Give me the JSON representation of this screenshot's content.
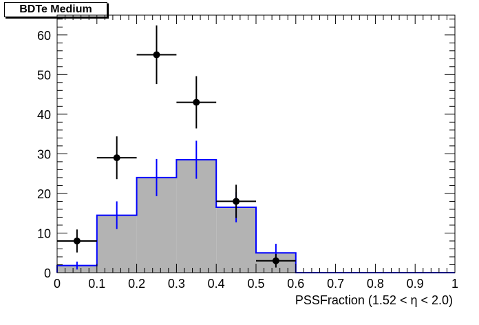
{
  "chart_data": {
    "type": "bar",
    "title": "BDTe Medium",
    "xlabel": "PSSFraction (1.52 <  η < 2.0)",
    "ylabel": "",
    "xlim": [
      0,
      1
    ],
    "ylim": [
      0,
      65
    ],
    "x_ticks": [
      "0",
      "0.1",
      "0.2",
      "0.3",
      "0.4",
      "0.5",
      "0.6",
      "0.7",
      "0.8",
      "0.9",
      "1"
    ],
    "y_ticks": [
      "0",
      "10",
      "20",
      "30",
      "40",
      "50",
      "60"
    ],
    "bin_edges": [
      0,
      0.1,
      0.2,
      0.3,
      0.4,
      0.5,
      0.6,
      0.7,
      0.8,
      0.9,
      1.0
    ],
    "series": [
      {
        "kind": "histogram",
        "fill_color": "#b3b3b3",
        "line_color": "#0000ff",
        "values": [
          1.8,
          14.5,
          24.0,
          28.5,
          16.5,
          5.0,
          0,
          0,
          0,
          0
        ],
        "errors": [
          1.0,
          3.5,
          4.7,
          4.8,
          3.8,
          2.3,
          0,
          0,
          0,
          0
        ]
      },
      {
        "kind": "points",
        "color": "#000000",
        "x": [
          0.05,
          0.15,
          0.25,
          0.35,
          0.45,
          0.55
        ],
        "values": [
          8,
          29,
          55,
          43,
          18,
          3
        ],
        "errors": [
          2.9,
          5.4,
          7.4,
          6.6,
          4.2,
          1.7
        ]
      }
    ]
  }
}
